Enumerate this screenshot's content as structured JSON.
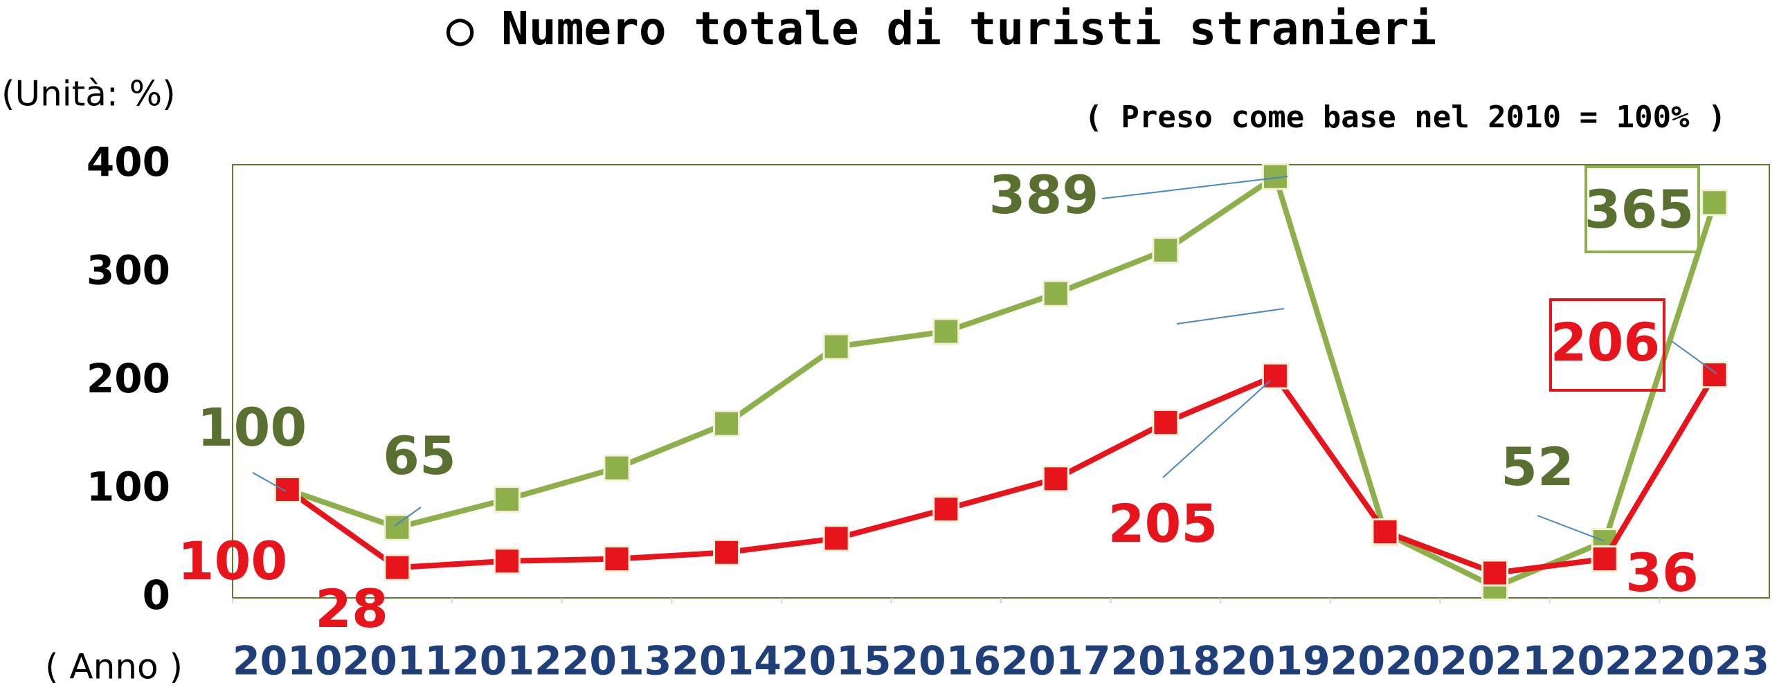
{
  "chart_data": {
    "type": "line",
    "title": "○ Numero totale di turisti stranieri",
    "subtitle": "( Preso come base nel 2010 = 100% )",
    "y_label": "(Unità: %)",
    "x_label": "( Anno )",
    "categories": [
      "2010",
      "2011",
      "2012",
      "2013",
      "2014",
      "2015",
      "2016",
      "2017",
      "2018",
      "2019",
      "2020",
      "2021",
      "2022",
      "2023"
    ],
    "series": [
      {
        "color": "#8db04a",
        "label_color": "#5a7030",
        "values": [
          100,
          65,
          91,
          120,
          161,
          232,
          246,
          281,
          321,
          389,
          60,
          10,
          52,
          365
        ],
        "label_indices": [
          0,
          1,
          9,
          12,
          13
        ]
      },
      {
        "color": "#e8141c",
        "label_color": "#e8141c",
        "values": [
          100,
          28,
          34,
          36,
          42,
          55,
          82,
          110,
          162,
          205,
          61,
          23,
          36,
          206
        ],
        "label_indices": [
          0,
          1,
          9,
          12,
          13
        ]
      }
    ],
    "ylim": [
      0,
      400
    ],
    "yticks": [
      0,
      100,
      200,
      300,
      400
    ],
    "grid": false
  }
}
